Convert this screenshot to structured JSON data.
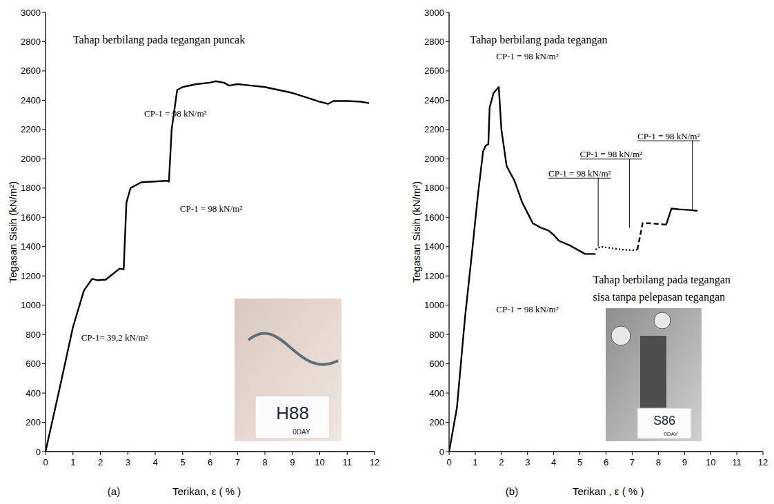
{
  "chart_data": [
    {
      "type": "line",
      "panel_label": "(a)",
      "x_label": "Terikan, ε ( % )",
      "y_label": "Tegasan Sisih (kN/m²)",
      "xlim": [
        0,
        12
      ],
      "xticks": [
        0,
        1,
        2,
        3,
        4,
        5,
        6,
        7,
        8,
        9,
        10,
        11,
        12
      ],
      "ylim": [
        0,
        3000
      ],
      "yticks": [
        0,
        200,
        400,
        600,
        800,
        1000,
        1200,
        1400,
        1600,
        1800,
        2000,
        2200,
        2400,
        2600,
        2800,
        3000
      ],
      "grid": false,
      "series": [
        {
          "color": "#000000",
          "line_style": "solid",
          "x": [
            0,
            0.5,
            1,
            1.4,
            1.7,
            1.9,
            2.2,
            2.5,
            2.7,
            2.85,
            2.95,
            3.1,
            3.5,
            4,
            4.4,
            4.5,
            4.6,
            4.8,
            5,
            5.5,
            6,
            6.2,
            6.5,
            6.7,
            7,
            7.5,
            8,
            8.5,
            9,
            9.5,
            10,
            10.3,
            10.5,
            11,
            11.5,
            11.8
          ],
          "values": [
            0,
            420,
            850,
            1100,
            1180,
            1170,
            1175,
            1220,
            1250,
            1245,
            1700,
            1800,
            1840,
            1845,
            1850,
            1845,
            2200,
            2470,
            2490,
            2510,
            2520,
            2530,
            2520,
            2500,
            2510,
            2500,
            2490,
            2470,
            2450,
            2420,
            2390,
            2375,
            2395,
            2395,
            2390,
            2380
          ]
        }
      ],
      "annotations": [
        {
          "text": "Tahap berbilang pada tegangan puncak"
        },
        {
          "text": "CP-1 = 98 kN/m²"
        },
        {
          "text": "CP-1 = 98 kN/m²"
        },
        {
          "text": "CP-1= 39,2 kN/m²"
        }
      ],
      "photo": {
        "label": "H88",
        "sublabel": "0DAY"
      }
    },
    {
      "type": "line",
      "panel_label": "(b)",
      "x_label": "Terikan , ε ( % )",
      "y_label": "Tegasan Sisih (kN/m²)",
      "xlim": [
        0,
        12
      ],
      "xticks": [
        0,
        1,
        2,
        3,
        4,
        5,
        6,
        7,
        8,
        9,
        10,
        11,
        12
      ],
      "ylim": [
        0,
        3000
      ],
      "yticks": [
        0,
        200,
        400,
        600,
        800,
        1000,
        1200,
        1400,
        1600,
        1800,
        2000,
        2200,
        2400,
        2600,
        2800,
        3000
      ],
      "grid": false,
      "series": [
        {
          "color": "#000000",
          "line_style": "solid",
          "x": [
            0,
            0.3,
            0.6,
            0.9,
            1.1,
            1.3,
            1.4,
            1.5,
            1.55,
            1.7,
            1.9,
            2.0,
            2.2,
            2.5,
            2.8,
            3,
            3.2,
            3.5,
            3.8,
            4,
            4.2,
            4.6,
            5,
            5.2,
            5.6
          ],
          "values": [
            0,
            300,
            900,
            1400,
            1750,
            2050,
            2090,
            2100,
            2350,
            2450,
            2490,
            2200,
            1950,
            1850,
            1700,
            1630,
            1560,
            1530,
            1510,
            1480,
            1440,
            1410,
            1370,
            1350,
            1350
          ]
        },
        {
          "color": "#000000",
          "line_style": "dotted",
          "x": [
            5.6,
            5.8,
            6.2,
            6.6,
            7,
            7.2
          ],
          "values": [
            1380,
            1400,
            1390,
            1380,
            1375,
            1380
          ]
        },
        {
          "color": "#000000",
          "line_style": "dashed",
          "x": [
            7.2,
            7.4,
            7.6,
            8,
            8.3
          ],
          "values": [
            1380,
            1560,
            1560,
            1555,
            1550
          ]
        },
        {
          "color": "#000000",
          "line_style": "solid",
          "x": [
            8.3,
            8.5,
            8.8,
            9.2,
            9.5
          ],
          "values": [
            1550,
            1660,
            1655,
            1650,
            1645
          ]
        }
      ],
      "annotations": [
        {
          "text": "Tahap berbilang pada tegangan"
        },
        {
          "text": "CP-1 = 98 kN/m²"
        },
        {
          "text": "CP-1 = 98 kN/m²"
        },
        {
          "text": "CP-1 = 98 kN/m²"
        },
        {
          "text": "CP-1 = 98 kN/m²"
        },
        {
          "text": "Tahap berbilang pada tegangan"
        },
        {
          "text": "sisa tanpa pelepasan tegangan"
        },
        {
          "text": "CP-1 = 98 kN/m²"
        }
      ],
      "photo": {
        "label": "S86",
        "sublabel": "0DAY"
      }
    }
  ]
}
